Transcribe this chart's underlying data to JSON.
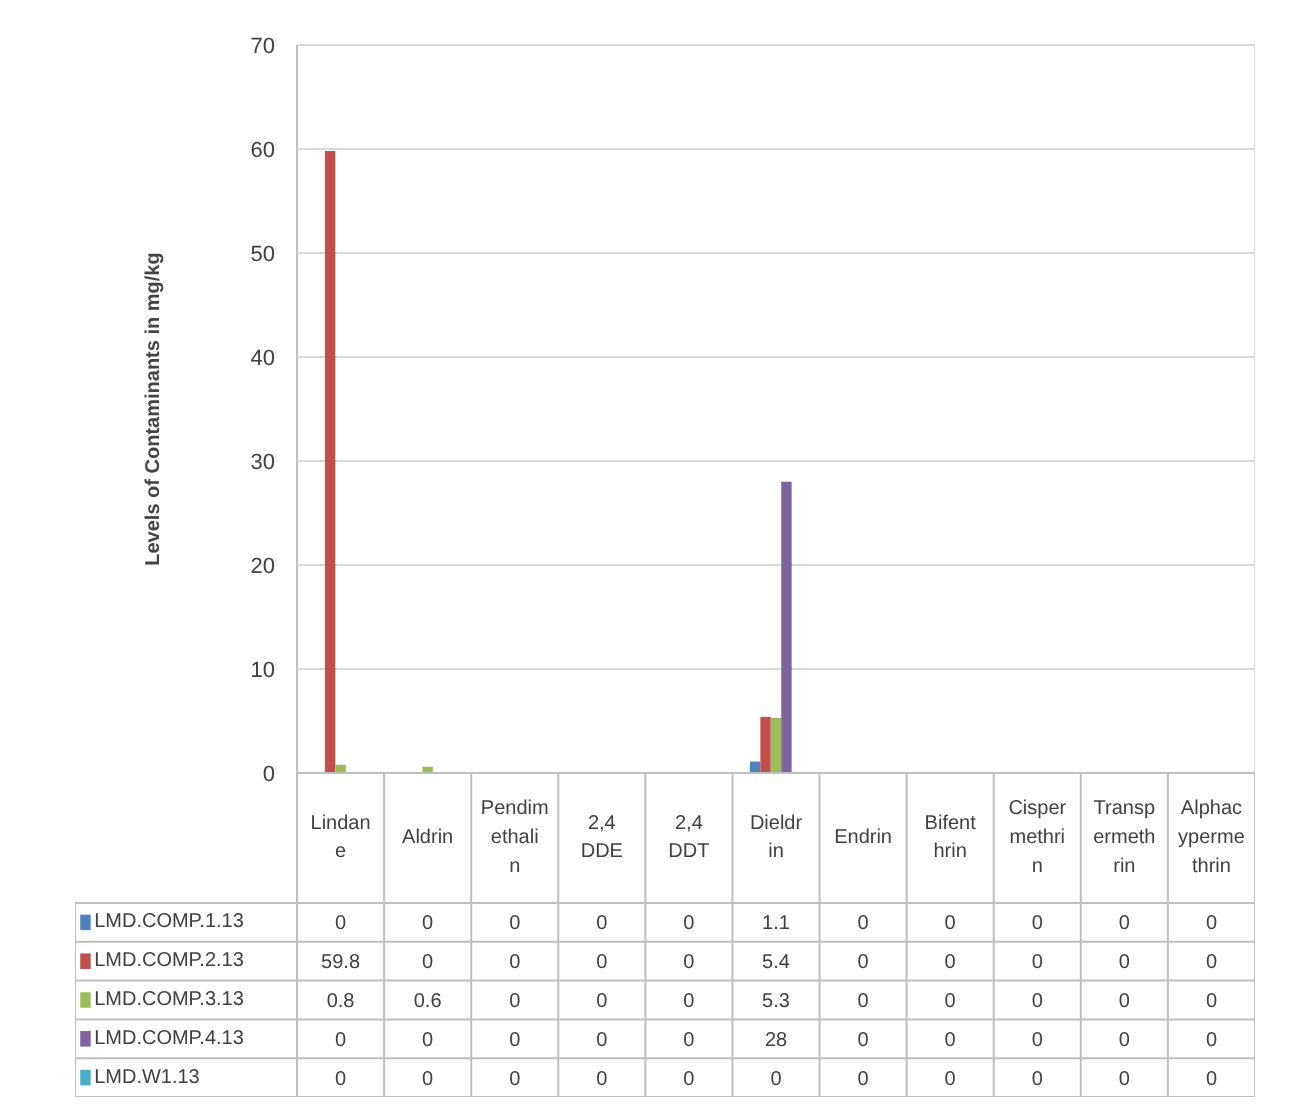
{
  "chart_data": {
    "type": "bar",
    "ylabel": "Levels of Contaminants in mg/kg",
    "categories": [
      "Lindane",
      "Aldrin",
      "Pendimethalin",
      "2,4 DDE",
      "2,4 DDT",
      "Dieldrin",
      "Endrin",
      "Bifenthrin",
      "Cispermethrin",
      "Transpermethrin",
      "Alphacypermethrin"
    ],
    "series": [
      {
        "name": "LMD.COMP.1.13",
        "color": "#4f81bd",
        "values": [
          0,
          0,
          0,
          0,
          0,
          1.1,
          0,
          0,
          0,
          0,
          0
        ]
      },
      {
        "name": "LMD.COMP.2.13",
        "color": "#c0504d",
        "values": [
          59.8,
          0,
          0,
          0,
          0,
          5.4,
          0,
          0,
          0,
          0,
          0
        ]
      },
      {
        "name": "LMD.COMP.3.13",
        "color": "#9bbb59",
        "values": [
          0.8,
          0.6,
          0,
          0,
          0,
          5.3,
          0,
          0,
          0,
          0,
          0
        ]
      },
      {
        "name": "LMD.COMP.4.13",
        "color": "#8064a2",
        "values": [
          0,
          0,
          0,
          0,
          0,
          28,
          0,
          0,
          0,
          0,
          0
        ]
      },
      {
        "name": "LMD.W1.13",
        "color": "#4bacc6",
        "values": [
          0,
          0,
          0,
          0,
          0,
          0,
          0,
          0,
          0,
          0,
          0
        ]
      }
    ],
    "ylim": [
      0,
      70
    ],
    "yticks": [
      0,
      10,
      20,
      30,
      40,
      50,
      60,
      70
    ],
    "grid": "y",
    "data_labels": true,
    "legend": "bottom left"
  }
}
